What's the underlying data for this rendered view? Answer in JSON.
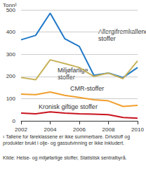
{
  "chart_data": {
    "type": "line",
    "y_label": "Tonn¹",
    "x": [
      2002,
      2003,
      2004,
      2005,
      2006,
      2007,
      2008,
      2009,
      2010
    ],
    "xlim": [
      2002,
      2010
    ],
    "xticks": [
      2002,
      2004,
      2006,
      2008,
      2010
    ],
    "ylim": [
      0,
      500
    ],
    "yticks": [
      0,
      100,
      200,
      300,
      400,
      500
    ],
    "grid": true,
    "series": [
      {
        "name": "Allergifremkallende stoffer",
        "color": "#1f78c8",
        "values": [
          365,
          385,
          485,
          370,
          335,
          205,
          215,
          195,
          240
        ]
      },
      {
        "name": "Miljøfarlige stoffer",
        "color": "#c8b25a",
        "values": [
          195,
          185,
          275,
          258,
          240,
          200,
          215,
          190,
          270
        ]
      },
      {
        "name": "CMR-stoffer",
        "color": "#f0a030",
        "values": [
          120,
          118,
          130,
          115,
          105,
          95,
          90,
          65,
          70
        ]
      },
      {
        "name": "Kronisk giftige stoffer",
        "color": "#c8141e",
        "values": [
          35,
          32,
          40,
          35,
          32,
          30,
          28,
          15,
          12
        ]
      }
    ],
    "footnote": "¹ Tallene for fareklassene er ikke summerbare. Drivstoff og produkter brukt i olje- og gassutvinning er ikke inkludert.",
    "source": "Kilde: Helse- og miljøfarlige stoffer, Statistisk sentralbyrå."
  }
}
